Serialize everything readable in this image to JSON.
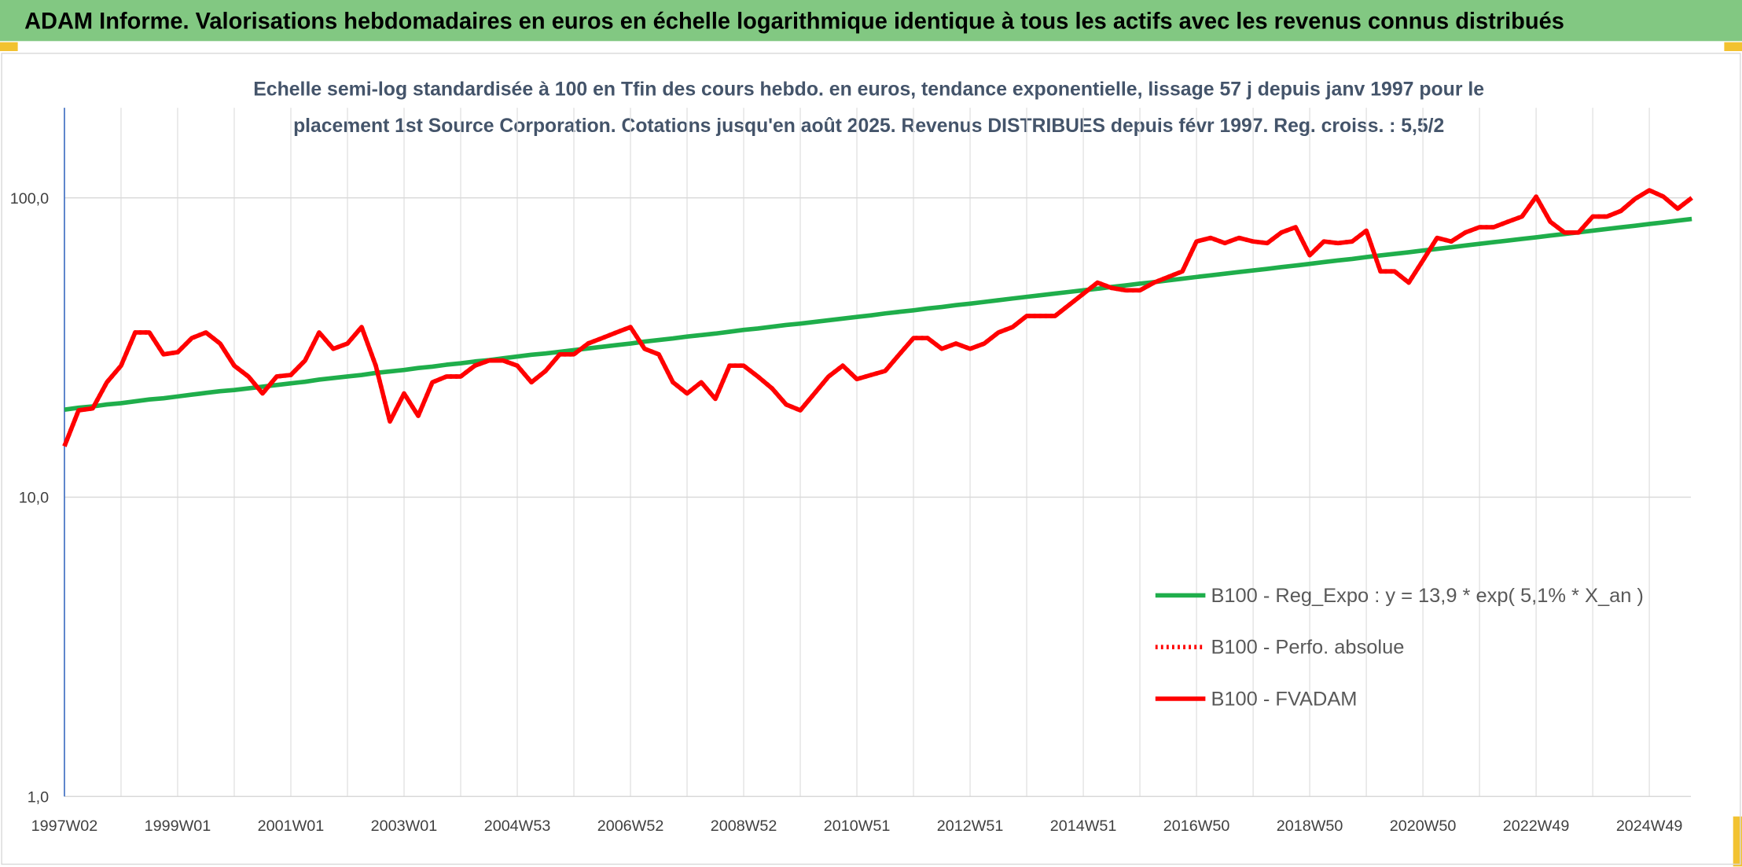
{
  "chart_data": {
    "type": "line",
    "title": "ADAM Informe. Valorisations hebdomadaires en euros en échelle logarithmique identique à tous les actifs avec les revenus connus distribués",
    "subtitle": [
      "Echelle semi-log standardisée à 100 en Tfin des cours hebdo. en euros, tendance exponentielle, lissage 57 j depuis janv 1997 pour le",
      "placement 1st Source Corporation. Cotations jusqu'en août 2025. Revenus DISTRIBUES depuis févr 1997. Reg. croiss. : 5,5/2"
    ],
    "categories": [
      "1997W02",
      null,
      null,
      null,
      null,
      null,
      null,
      null,
      "1999W01",
      null,
      null,
      null,
      null,
      null,
      null,
      null,
      "2001W01",
      null,
      null,
      null,
      null,
      null,
      null,
      null,
      "2003W01",
      null,
      null,
      null,
      null,
      null,
      null,
      null,
      "2004W53",
      null,
      null,
      null,
      null,
      null,
      null,
      null,
      "2006W52",
      null,
      null,
      null,
      null,
      null,
      null,
      null,
      "2008W52",
      null,
      null,
      null,
      null,
      null,
      null,
      null,
      "2010W51",
      null,
      null,
      null,
      null,
      null,
      null,
      null,
      "2012W51",
      null,
      null,
      null,
      null,
      null,
      null,
      null,
      "2014W51",
      null,
      null,
      null,
      null,
      null,
      null,
      null,
      "2016W50",
      null,
      null,
      null,
      null,
      null,
      null,
      null,
      "2018W50",
      null,
      null,
      null,
      null,
      null,
      null,
      null,
      "2020W50",
      null,
      null,
      null,
      null,
      null,
      null,
      null,
      "2022W49",
      null,
      null,
      null,
      null,
      null,
      null,
      null,
      "2024W49",
      null,
      null,
      null
    ],
    "series": [
      {
        "name": "B100 - Reg_Expo : y = 13,9 * exp( 5,1% *  X_an )",
        "color": "#1fae4b",
        "dash": "solid",
        "values": [
          19.6,
          19.9,
          20.1,
          20.4,
          20.6,
          20.9,
          21.2,
          21.4,
          21.7,
          22.0,
          22.3,
          22.6,
          22.8,
          23.1,
          23.4,
          23.7,
          24.0,
          24.3,
          24.7,
          25.0,
          25.3,
          25.6,
          26.0,
          26.3,
          26.6,
          27.0,
          27.3,
          27.7,
          28.0,
          28.4,
          28.7,
          29.1,
          29.5,
          29.9,
          30.2,
          30.6,
          31.0,
          31.4,
          31.8,
          32.2,
          32.6,
          33.1,
          33.5,
          33.9,
          34.4,
          34.8,
          35.2,
          35.7,
          36.2,
          36.6,
          37.1,
          37.6,
          38.0,
          38.5,
          39.0,
          39.5,
          40.0,
          40.5,
          41.1,
          41.6,
          42.1,
          42.7,
          43.2,
          43.8,
          44.3,
          44.9,
          45.5,
          46.1,
          46.7,
          47.3,
          47.9,
          48.5,
          49.1,
          49.7,
          50.4,
          51.0,
          51.7,
          52.3,
          53.0,
          53.7,
          54.4,
          55.1,
          55.8,
          56.5,
          57.2,
          57.9,
          58.7,
          59.4,
          60.2,
          61.0,
          61.8,
          62.5,
          63.4,
          64.2,
          65.0,
          65.8,
          66.7,
          67.5,
          68.4,
          69.3,
          70.2,
          71.1,
          72.0,
          72.9,
          73.8,
          74.8,
          75.7,
          76.7,
          77.7,
          78.7,
          79.7,
          80.7,
          81.8,
          82.8,
          83.9,
          85.0
        ]
      },
      {
        "name": "B100 - Perfo. absolue",
        "color": "#ff0000",
        "dash": "dotted",
        "values": [
          14.8,
          19.5,
          19.8,
          24.2,
          27.5,
          35.5,
          35.5,
          30,
          30.5,
          34,
          35.5,
          32.6,
          27.5,
          25.3,
          22.2,
          25.3,
          25.6,
          28.6,
          35.5,
          31.3,
          32.6,
          37,
          27.5,
          17.9,
          22.2,
          18.7,
          24.2,
          25.3,
          25.3,
          27.5,
          28.6,
          28.6,
          27.5,
          24.2,
          26.4,
          30,
          30,
          32.6,
          34,
          35.5,
          37,
          31.3,
          30,
          24.2,
          22.2,
          24.2,
          21.3,
          27.5,
          27.5,
          25.3,
          23.1,
          20.4,
          19.5,
          22.2,
          25.3,
          27.5,
          24.8,
          25.6,
          26.4,
          30,
          34,
          34,
          31.3,
          32.6,
          31.3,
          32.6,
          35.5,
          37,
          40.3,
          40.3,
          40.3,
          43.9,
          47.8,
          52.1,
          50,
          49.1,
          49.1,
          52.1,
          54.4,
          56.8,
          71.5,
          73.5,
          70.6,
          73.5,
          71.5,
          70.6,
          76.6,
          79.8,
          64.3,
          71.5,
          70.6,
          71.5,
          77.7,
          56.8,
          56.8,
          52.1,
          61.8,
          73.5,
          71.5,
          76.6,
          79.8,
          79.8,
          83.2,
          86.6,
          100.9,
          83.2,
          76.6,
          76.6,
          86.6,
          86.6,
          90.5,
          99.3,
          106,
          100.9,
          92,
          100
        ]
      },
      {
        "name": "B100 - FVADAM",
        "color": "#ff0000",
        "dash": "solid",
        "values": [
          14.8,
          19.5,
          19.8,
          24.2,
          27.5,
          35.5,
          35.5,
          30,
          30.5,
          34,
          35.5,
          32.6,
          27.5,
          25.3,
          22.2,
          25.3,
          25.6,
          28.6,
          35.5,
          31.3,
          32.6,
          37,
          27.5,
          17.9,
          22.2,
          18.7,
          24.2,
          25.3,
          25.3,
          27.5,
          28.6,
          28.6,
          27.5,
          24.2,
          26.4,
          30,
          30,
          32.6,
          34,
          35.5,
          37,
          31.3,
          30,
          24.2,
          22.2,
          24.2,
          21.3,
          27.5,
          27.5,
          25.3,
          23.1,
          20.4,
          19.5,
          22.2,
          25.3,
          27.5,
          24.8,
          25.6,
          26.4,
          30,
          34,
          34,
          31.3,
          32.6,
          31.3,
          32.6,
          35.5,
          37,
          40.3,
          40.3,
          40.3,
          43.9,
          47.8,
          52.1,
          50,
          49.1,
          49.1,
          52.1,
          54.4,
          56.8,
          71.5,
          73.5,
          70.6,
          73.5,
          71.5,
          70.6,
          76.6,
          79.8,
          64.3,
          71.5,
          70.6,
          71.5,
          77.7,
          56.8,
          56.8,
          52.1,
          61.8,
          73.5,
          71.5,
          76.6,
          79.8,
          79.8,
          83.2,
          86.6,
          100.9,
          83.2,
          76.6,
          76.6,
          86.6,
          86.6,
          90.5,
          99.3,
          106,
          100.9,
          92,
          100
        ]
      }
    ],
    "ylim": [
      1,
      200
    ],
    "log_y": true,
    "grid": true,
    "legend": "lower right",
    "yticks": [
      {
        "value": 1,
        "label": "1,0"
      },
      {
        "value": 10,
        "label": "10,0"
      },
      {
        "value": 100,
        "label": "100,0"
      }
    ]
  }
}
